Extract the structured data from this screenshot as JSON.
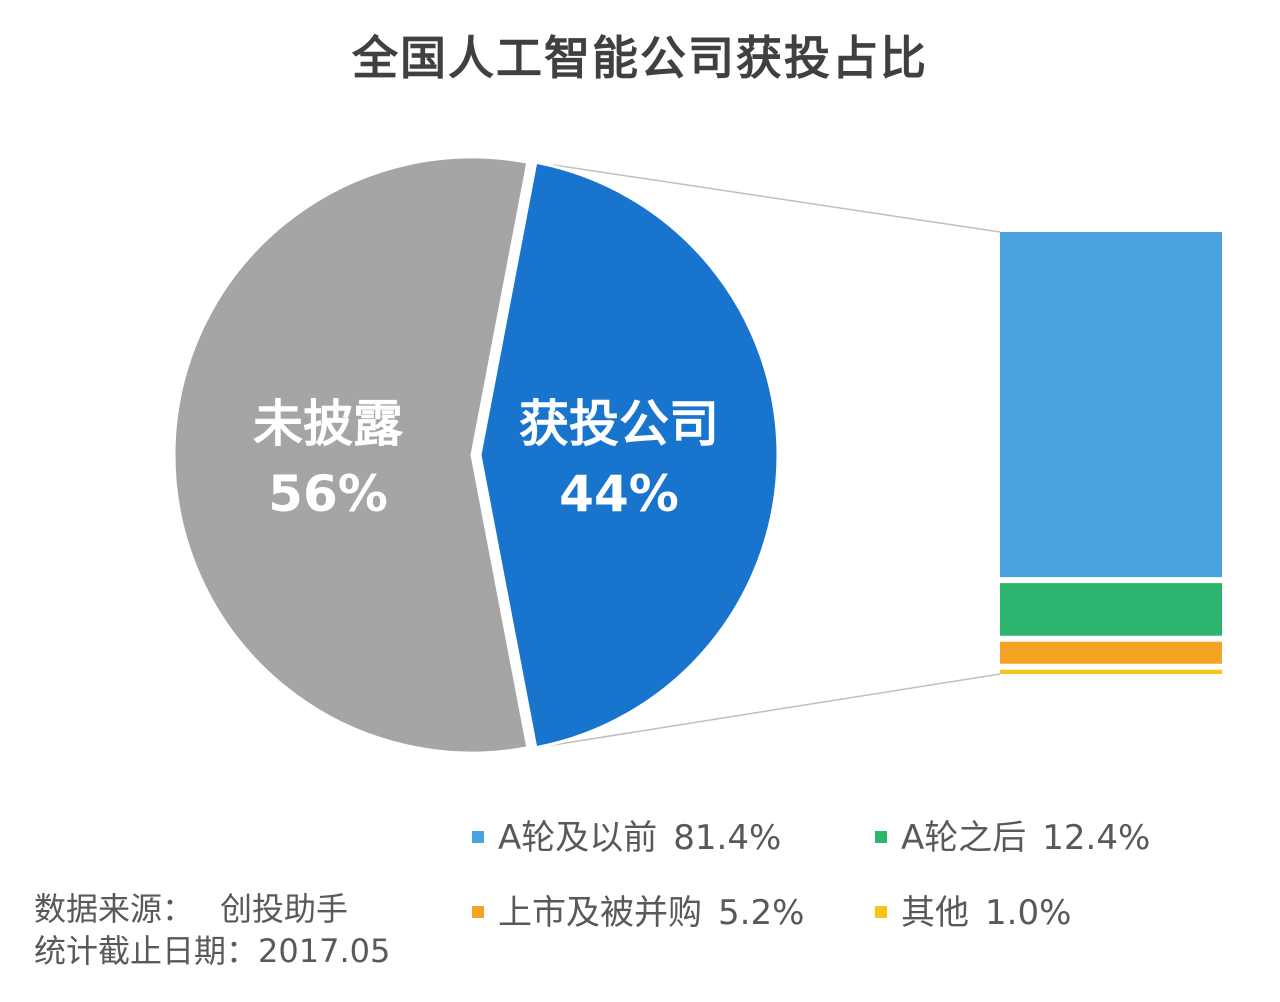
{
  "chart_data": {
    "type": "pie",
    "title": "全国人工智能公司获投占比",
    "pie": {
      "slices": [
        {
          "label": "未披露",
          "value": 56,
          "value_text": "56%",
          "color": "#a5a5a5"
        },
        {
          "label": "获投公司",
          "value": 44,
          "value_text": "44%",
          "color": "#1874cd"
        }
      ],
      "exploded_slice": "获投公司"
    },
    "breakdown_bar": {
      "type": "stacked-bar",
      "of": "获投公司",
      "segments": [
        {
          "label": "A轮及以前",
          "value": 81.4,
          "value_text": "81.4%",
          "color": "#4aa3df"
        },
        {
          "label": "A轮之后",
          "value": 12.4,
          "value_text": "12.4%",
          "color": "#2db46e"
        },
        {
          "label": "上市及被并购",
          "value": 5.2,
          "value_text": "5.2%",
          "color": "#f5a324"
        },
        {
          "label": "其他",
          "value": 1.0,
          "value_text": "1.0%",
          "color": "#f5c518"
        }
      ]
    },
    "legend_placement": "bottom-right"
  },
  "source": {
    "label": "数据来源：",
    "value": "创投助手",
    "date_label": "统计截止日期：",
    "date_value": "2017.05"
  }
}
